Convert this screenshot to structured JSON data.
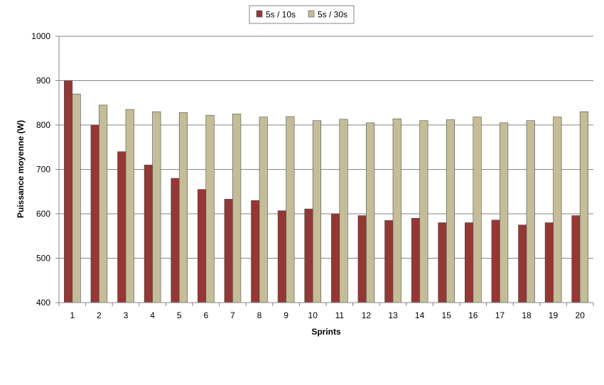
{
  "chart_data": {
    "type": "bar",
    "title": "",
    "xlabel": "Sprints",
    "ylabel": "Puissance moyenne (W)",
    "ylim": [
      400,
      1000
    ],
    "yticks": [
      400,
      500,
      600,
      700,
      800,
      900,
      1000
    ],
    "grid": true,
    "legend_position": "top-center",
    "categories": [
      "1",
      "2",
      "3",
      "4",
      "5",
      "6",
      "7",
      "8",
      "9",
      "10",
      "11",
      "12",
      "13",
      "14",
      "15",
      "16",
      "17",
      "18",
      "19",
      "20"
    ],
    "series": [
      {
        "name": "5s / 10s",
        "color": "#953735",
        "values": [
          900,
          800,
          740,
          710,
          680,
          655,
          633,
          630,
          607,
          611,
          600,
          596,
          585,
          590,
          580,
          580,
          586,
          575,
          580,
          596
        ]
      },
      {
        "name": "5s / 30s",
        "color": "#C4BD97",
        "values": [
          870,
          845,
          835,
          830,
          828,
          822,
          825,
          818,
          819,
          810,
          813,
          805,
          814,
          810,
          812,
          818,
          805,
          810,
          818,
          830
        ]
      }
    ]
  }
}
